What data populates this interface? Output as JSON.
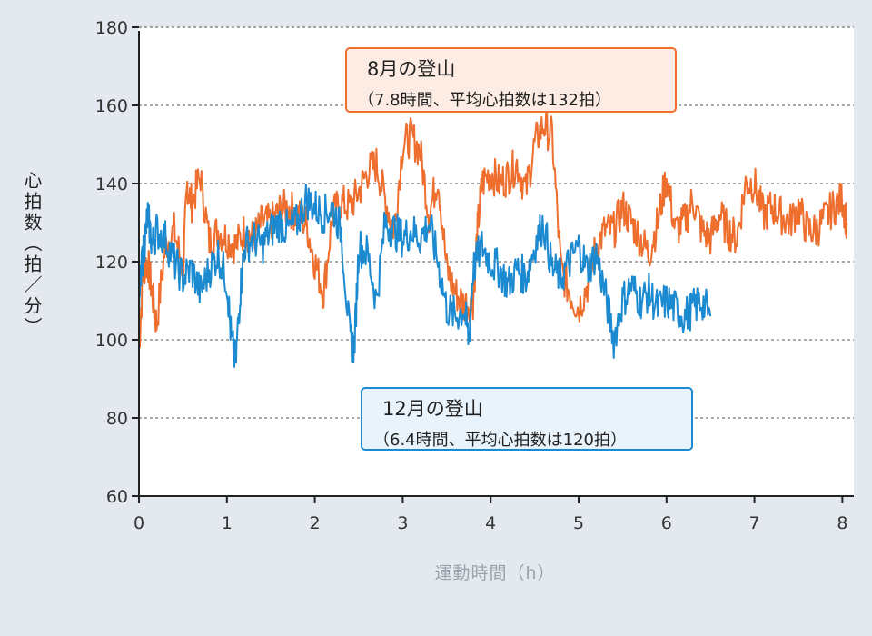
{
  "annotations": [
    {
      "title": "8月の登山",
      "detail": "（7.8時間、平均心拍数は132拍）"
    },
    {
      "title": "12月の登山",
      "detail": "（6.4時間、平均心拍数は120拍）"
    }
  ],
  "chart_data": {
    "type": "line",
    "title": "",
    "xlabel": "運動時間（h）",
    "ylabel": "心拍数（拍／分）",
    "xlim": [
      0,
      8.1
    ],
    "ylim": [
      60,
      180
    ],
    "xticks": [
      0,
      1,
      2,
      3,
      4,
      5,
      6,
      7,
      8
    ],
    "yticks": [
      60,
      80,
      100,
      120,
      140,
      160,
      180
    ],
    "grid": "horizontal dashed",
    "colors": {
      "august": "#ee6e2e",
      "december": "#1c8ad0",
      "overlap": "#1a5a5c",
      "axis": "#222222"
    },
    "series": [
      {
        "name": "8月の登山",
        "x": [
          0,
          0.05,
          0.1,
          0.15,
          0.2,
          0.3,
          0.4,
          0.5,
          0.55,
          0.6,
          0.7,
          0.8,
          0.9,
          1.0,
          1.1,
          1.2,
          1.3,
          1.4,
          1.5,
          1.6,
          1.7,
          1.8,
          1.9,
          2.0,
          2.1,
          2.2,
          2.3,
          2.4,
          2.5,
          2.6,
          2.7,
          2.8,
          2.9,
          3.0,
          3.1,
          3.2,
          3.3,
          3.4,
          3.5,
          3.6,
          3.7,
          3.8,
          3.85,
          3.9,
          4.0,
          4.1,
          4.2,
          4.3,
          4.4,
          4.5,
          4.6,
          4.7,
          4.8,
          4.9,
          5.0,
          5.1,
          5.2,
          5.3,
          5.4,
          5.5,
          5.6,
          5.7,
          5.8,
          5.9,
          6.0,
          6.1,
          6.2,
          6.3,
          6.4,
          6.5,
          6.6,
          6.7,
          6.8,
          6.9,
          7.0,
          7.1,
          7.2,
          7.3,
          7.4,
          7.5,
          7.6,
          7.7,
          7.8,
          7.9,
          8.0,
          8.05
        ],
        "values": [
          98,
          118,
          120,
          112,
          104,
          124,
          128,
          118,
          140,
          135,
          142,
          125,
          128,
          126,
          124,
          128,
          126,
          130,
          130,
          133,
          134,
          132,
          130,
          120,
          112,
          132,
          135,
          134,
          138,
          143,
          145,
          136,
          128,
          150,
          152,
          148,
          132,
          142,
          118,
          112,
          109,
          110,
          128,
          140,
          143,
          140,
          142,
          145,
          138,
          150,
          155,
          152,
          118,
          112,
          108,
          114,
          124,
          128,
          128,
          134,
          130,
          126,
          122,
          130,
          142,
          128,
          130,
          136,
          128,
          126,
          132,
          128,
          126,
          140,
          140,
          132,
          134,
          132,
          130,
          134,
          128,
          128,
          131,
          134,
          136,
          130
        ]
      },
      {
        "name": "12月の登山",
        "x": [
          0,
          0.03,
          0.06,
          0.1,
          0.15,
          0.2,
          0.3,
          0.4,
          0.5,
          0.6,
          0.7,
          0.8,
          0.9,
          1.0,
          1.05,
          1.1,
          1.15,
          1.2,
          1.3,
          1.4,
          1.5,
          1.6,
          1.7,
          1.8,
          1.9,
          2.0,
          2.1,
          2.2,
          2.3,
          2.4,
          2.45,
          2.5,
          2.6,
          2.7,
          2.8,
          2.9,
          3.0,
          3.1,
          3.2,
          3.3,
          3.4,
          3.5,
          3.6,
          3.7,
          3.75,
          3.8,
          3.9,
          4.0,
          4.1,
          4.2,
          4.3,
          4.4,
          4.5,
          4.6,
          4.7,
          4.8,
          4.9,
          5.0,
          5.1,
          5.2,
          5.3,
          5.4,
          5.5,
          5.6,
          5.7,
          5.8,
          5.9,
          6.0,
          6.1,
          6.2,
          6.3,
          6.4,
          6.5
        ],
        "values": [
          110,
          118,
          124,
          132,
          124,
          128,
          126,
          120,
          116,
          118,
          112,
          118,
          122,
          115,
          100,
          94,
          112,
          124,
          126,
          124,
          128,
          130,
          128,
          130,
          136,
          134,
          132,
          134,
          128,
          100,
          98,
          124,
          122,
          110,
          130,
          128,
          126,
          128,
          126,
          130,
          120,
          108,
          106,
          108,
          100,
          118,
          124,
          120,
          118,
          114,
          118,
          116,
          124,
          130,
          118,
          116,
          120,
          124,
          118,
          122,
          112,
          100,
          110,
          114,
          110,
          112,
          108,
          110,
          108,
          106,
          108,
          110,
          106
        ]
      }
    ]
  }
}
